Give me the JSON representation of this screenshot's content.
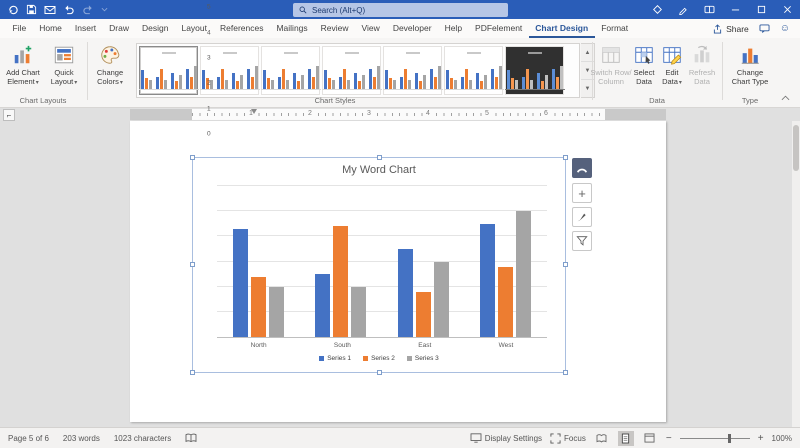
{
  "titlebar": {
    "search_placeholder": "Search (Alt+Q)",
    "icons": [
      "autosave-icon",
      "save-icon",
      "email-icon",
      "undo-icon",
      "redo-icon",
      "qat-more-icon"
    ],
    "right_icons": [
      "presence-icon",
      "pencil-icon",
      "reading-mode-icon",
      "minimize-icon",
      "maximize-icon",
      "close-icon"
    ]
  },
  "menu": {
    "tabs": [
      "File",
      "Home",
      "Insert",
      "Draw",
      "Design",
      "Layout",
      "References",
      "Mailings",
      "Review",
      "View",
      "Developer",
      "Help",
      "PDFelement",
      "Chart Design",
      "Format"
    ],
    "active_tab": "Chart Design",
    "share_label": "Share"
  },
  "ribbon": {
    "add_chart_element": [
      "Add Chart",
      "Element"
    ],
    "quick_layout": [
      "Quick",
      "Layout"
    ],
    "change_colors": [
      "Change",
      "Colors"
    ],
    "switch_row_column": [
      "Switch Row/",
      "Column"
    ],
    "select_data": [
      "Select",
      "Data"
    ],
    "edit_data": [
      "Edit",
      "Data"
    ],
    "refresh_data": [
      "Refresh",
      "Data"
    ],
    "change_chart_type": [
      "Change",
      "Chart Type"
    ],
    "group_labels": [
      "Chart Layouts",
      "Chart Styles",
      "Data",
      "Type"
    ],
    "gallery": {
      "count": 7,
      "selected_index": 0,
      "last_dark": true
    }
  },
  "ruler": {
    "numbers": [
      1,
      2,
      3,
      4,
      5,
      6
    ]
  },
  "chart_data": {
    "type": "bar",
    "title": "My Word Chart",
    "categories": [
      "North",
      "South",
      "East",
      "West"
    ],
    "series": [
      {
        "name": "Series 1",
        "color": "#4472C4",
        "values": [
          4.3,
          2.5,
          3.5,
          4.5
        ]
      },
      {
        "name": "Series 2",
        "color": "#ED7D31",
        "values": [
          2.4,
          4.4,
          1.8,
          2.8
        ]
      },
      {
        "name": "Series 3",
        "color": "#A5A5A5",
        "values": [
          2.0,
          2.0,
          3.0,
          5.0
        ]
      }
    ],
    "ylim": [
      0,
      6
    ],
    "yticks": [
      0,
      1,
      2,
      3,
      4,
      5,
      6
    ],
    "grid": true,
    "legend_position": "bottom"
  },
  "chart_side_buttons": [
    "layout-options",
    "chart-elements",
    "chart-styles",
    "chart-filters"
  ],
  "status": {
    "page": "Page 5 of 6",
    "words": "203 words",
    "characters": "1023 characters",
    "display_settings": "Display Settings",
    "focus": "Focus",
    "zoom": "100%"
  },
  "colors": {
    "titlebar": "#2a5db8",
    "accent": "#2b579a",
    "series1": "#4472C4",
    "series2": "#ED7D31",
    "series3": "#A5A5A5"
  }
}
